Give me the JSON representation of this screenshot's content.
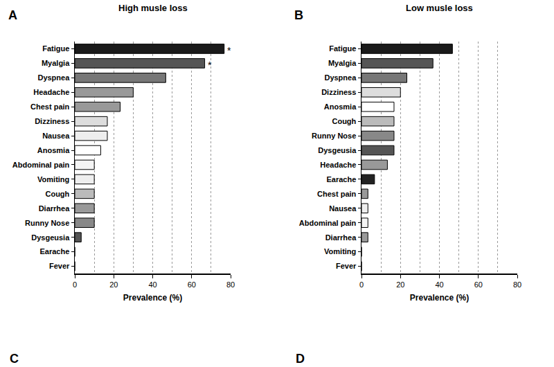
{
  "chart_data": [
    {
      "panel": "A",
      "type": "bar",
      "orientation": "horizontal",
      "title": "High musle loss",
      "categories": [
        "Fatigue",
        "Myalgia",
        "Dyspnea",
        "Headache",
        "Chest pain",
        "Dizziness",
        "Nausea",
        "Anosmia",
        "Abdominal pain",
        "Vomiting",
        "Cough",
        "Diarrhea",
        "Runny Nose",
        "Dysgeusia",
        "Earache",
        "Fever"
      ],
      "values": [
        76.7,
        66.7,
        46.7,
        30,
        23.3,
        16.7,
        16.7,
        13.3,
        10,
        10,
        10,
        10,
        10,
        3.3,
        0,
        0
      ],
      "colors": [
        "#1a1a1a",
        "#555555",
        "#777777",
        "#999999",
        "#999999",
        "#dddddd",
        "#eeeeee",
        "#ffffff",
        "#f4f4f4",
        "#eeeeee",
        "#bbbbbb",
        "#999999",
        "#888888",
        "#555555",
        "#222222",
        "#ffffff"
      ],
      "xlabel": "Prevalence (%)",
      "xlim": [
        0,
        80
      ],
      "xticks": [
        0,
        20,
        40,
        60,
        80
      ],
      "grid": true,
      "annotations": [
        {
          "category": "Fatigue",
          "text": "*"
        },
        {
          "category": "Myalgia",
          "text": "*"
        }
      ]
    },
    {
      "panel": "B",
      "type": "bar",
      "orientation": "horizontal",
      "title": "Low musle loss",
      "categories": [
        "Fatigue",
        "Myalgia",
        "Dyspnea",
        "Dizziness",
        "Anosmia",
        "Cough",
        "Runny Nose",
        "Dysgeusia",
        "Headache",
        "Earache",
        "Chest pain",
        "Nausea",
        "Abdominal pain",
        "Diarrhea",
        "Vomiting",
        "Fever"
      ],
      "values": [
        46.7,
        36.7,
        23.3,
        20,
        16.7,
        16.7,
        16.7,
        16.7,
        13.3,
        6.7,
        3.3,
        3.3,
        3.3,
        3.3,
        0,
        0
      ],
      "colors": [
        "#1a1a1a",
        "#555555",
        "#777777",
        "#dddddd",
        "#ffffff",
        "#bbbbbb",
        "#888888",
        "#555555",
        "#999999",
        "#222222",
        "#999999",
        "#eeeeee",
        "#f4f4f4",
        "#999999",
        "#eeeeee",
        "#ffffff"
      ],
      "xlabel": "Prevalence (%)",
      "xlim": [
        0,
        80
      ],
      "xticks": [
        0,
        20,
        40,
        60,
        80
      ],
      "grid": true
    }
  ],
  "panel_labels": [
    "C",
    "D"
  ]
}
